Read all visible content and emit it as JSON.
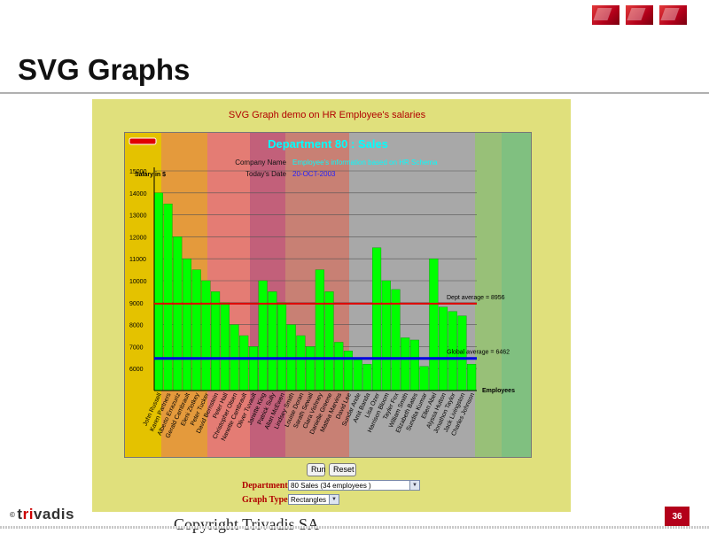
{
  "slide": {
    "title": "SVG Graphs",
    "demo_title": "SVG Graph demo on HR Employee's salaries",
    "copyright": "Copyright Trivadis SA",
    "page_number": "36",
    "logo_text_pre": "t",
    "logo_text_mid": "ri",
    "logo_text_post": "vadis",
    "logo_copyright": "©"
  },
  "controls": {
    "run_label": "Run",
    "reset_label": "Reset",
    "department_label": "Department",
    "department_value": "80 Sales (34 employees )",
    "graph_type_label": "Graph Type",
    "graph_type_value": "Rectangles"
  },
  "chart_header": {
    "department_title": "Department 80 : Sales",
    "company_name_label": "Company Name",
    "company_name_value": "Employee's information based on HR Schema",
    "date_label": "Today's Date",
    "date_value": "20-OCT-2003"
  },
  "chart_data": {
    "type": "bar",
    "ylabel": "Salary in $",
    "xlabel": "Employees",
    "ylim": [
      5000,
      15000
    ],
    "yticks": [
      6000,
      7000,
      8000,
      9000,
      10000,
      11000,
      12000,
      13000,
      14000,
      15000
    ],
    "categories": [
      "John Russell",
      "Karen Partners",
      "Alberto Errazuriz",
      "Gerald Cambrault",
      "Eleni Zlotkey",
      "Peter Tucker",
      "David Bernstein",
      "Peter Hall",
      "Christopher Olsen",
      "Nanette Cambrault",
      "Oliver Tuvault",
      "Janette King",
      "Patrick Sully",
      "Allan McEwen",
      "Lindsey Smith",
      "Louise Doran",
      "Sarath Sewall",
      "Clara Vishney",
      "Danielle Greene",
      "Mattea Marvins",
      "David Lee",
      "Sundar Ande",
      "Amit Banda",
      "Lisa Ozer",
      "Harrison Bloom",
      "Tayler Fox",
      "William Smith",
      "Elizabeth Bates",
      "Sundita Kumar",
      "Ellen Abel",
      "Alyssa Hutton",
      "Jonathon Taylor",
      "Jack Livingston",
      "Charles Johnson"
    ],
    "values": [
      14000,
      13500,
      12000,
      11000,
      10500,
      10000,
      9500,
      9000,
      8000,
      7500,
      7000,
      10000,
      9500,
      9000,
      8000,
      7500,
      7000,
      10500,
      9500,
      7200,
      6800,
      6400,
      6200,
      11500,
      10000,
      9600,
      7400,
      7300,
      6100,
      11000,
      8800,
      8600,
      8400,
      6200
    ],
    "reference_lines": [
      {
        "label": "Dept average = 8956",
        "value": 8956,
        "color": "#e00000"
      },
      {
        "label": "Global average = 6462",
        "value": 6462,
        "color": "#0000e0"
      }
    ],
    "bar_color": "#00ff00",
    "background_bands": [
      "#e4c200",
      "#e49a3c",
      "#e47c74",
      "#c2607a",
      "#c88074",
      "#a8a8a8",
      "#a8a8a8",
      "#98c078",
      "#80c080"
    ]
  }
}
